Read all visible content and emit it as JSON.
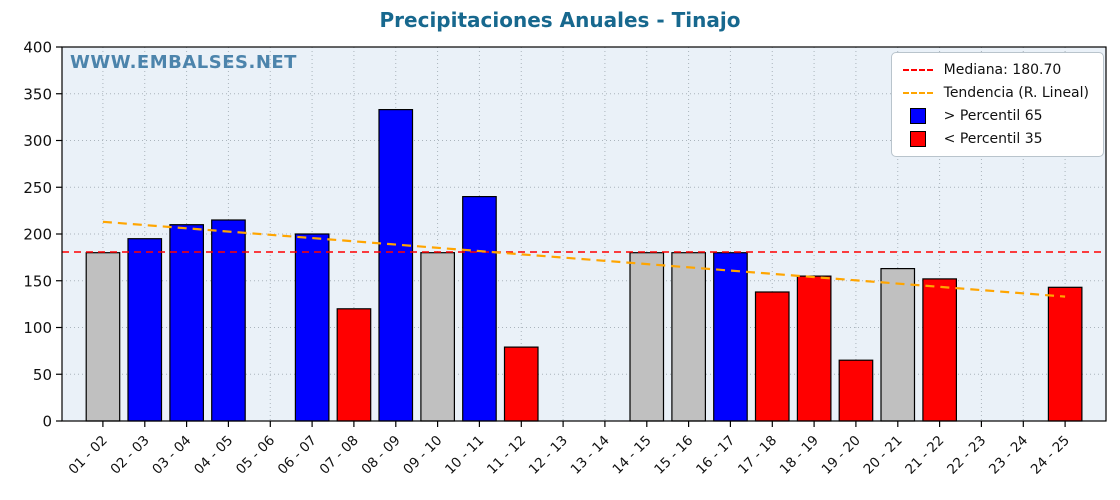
{
  "colors": {
    "blue": "#0000ff",
    "red": "#ff0000",
    "gray": "#c0c0c0",
    "median_line": "#ff0000",
    "trend_line": "#ffa500",
    "title": "#17688e",
    "watermark": "#3b79a4",
    "plot_bg": "#eaf1f8",
    "grid": "#aab4bc",
    "bar_edge": "#000000"
  },
  "chart_data": {
    "type": "bar",
    "title": "Precipitaciones Anuales - Tinajo",
    "watermark": "WWW.EMBALSES.NET",
    "xlabel": "",
    "ylabel": "",
    "ylim": [
      0,
      400
    ],
    "yticks": [
      0,
      50,
      100,
      150,
      200,
      250,
      300,
      350,
      400
    ],
    "grid": true,
    "categories": [
      "01 - 02",
      "02 - 03",
      "03 - 04",
      "04 - 05",
      "05 - 06",
      "06 - 07",
      "07 - 08",
      "08 - 09",
      "09 - 10",
      "10 - 11",
      "11 - 12",
      "12 - 13",
      "13 - 14",
      "14 - 15",
      "15 - 16",
      "16 - 17",
      "17 - 18",
      "18 - 19",
      "19 - 20",
      "20 - 21",
      "21 - 22",
      "22 - 23",
      "23 - 24",
      "24 - 25"
    ],
    "values": [
      180,
      195,
      210,
      215,
      null,
      200,
      120,
      333,
      180,
      240,
      79,
      null,
      null,
      180,
      180,
      180,
      138,
      155,
      65,
      163,
      152,
      null,
      null,
      143
    ],
    "bar_colors": [
      "gray",
      "blue",
      "blue",
      "blue",
      null,
      "blue",
      "red",
      "blue",
      "gray",
      "blue",
      "red",
      null,
      null,
      "gray",
      "gray",
      "blue",
      "red",
      "red",
      "red",
      "gray",
      "red",
      null,
      null,
      "red"
    ],
    "median": 180.7,
    "trend_line": {
      "start": 213,
      "end": 133
    },
    "legend": {
      "position": "upper right",
      "mediana": "Mediana: 180.70",
      "tendencia": "Tendencia (R. Lineal)",
      "p65": "> Percentil 65",
      "p35": "< Percentil 35"
    }
  }
}
